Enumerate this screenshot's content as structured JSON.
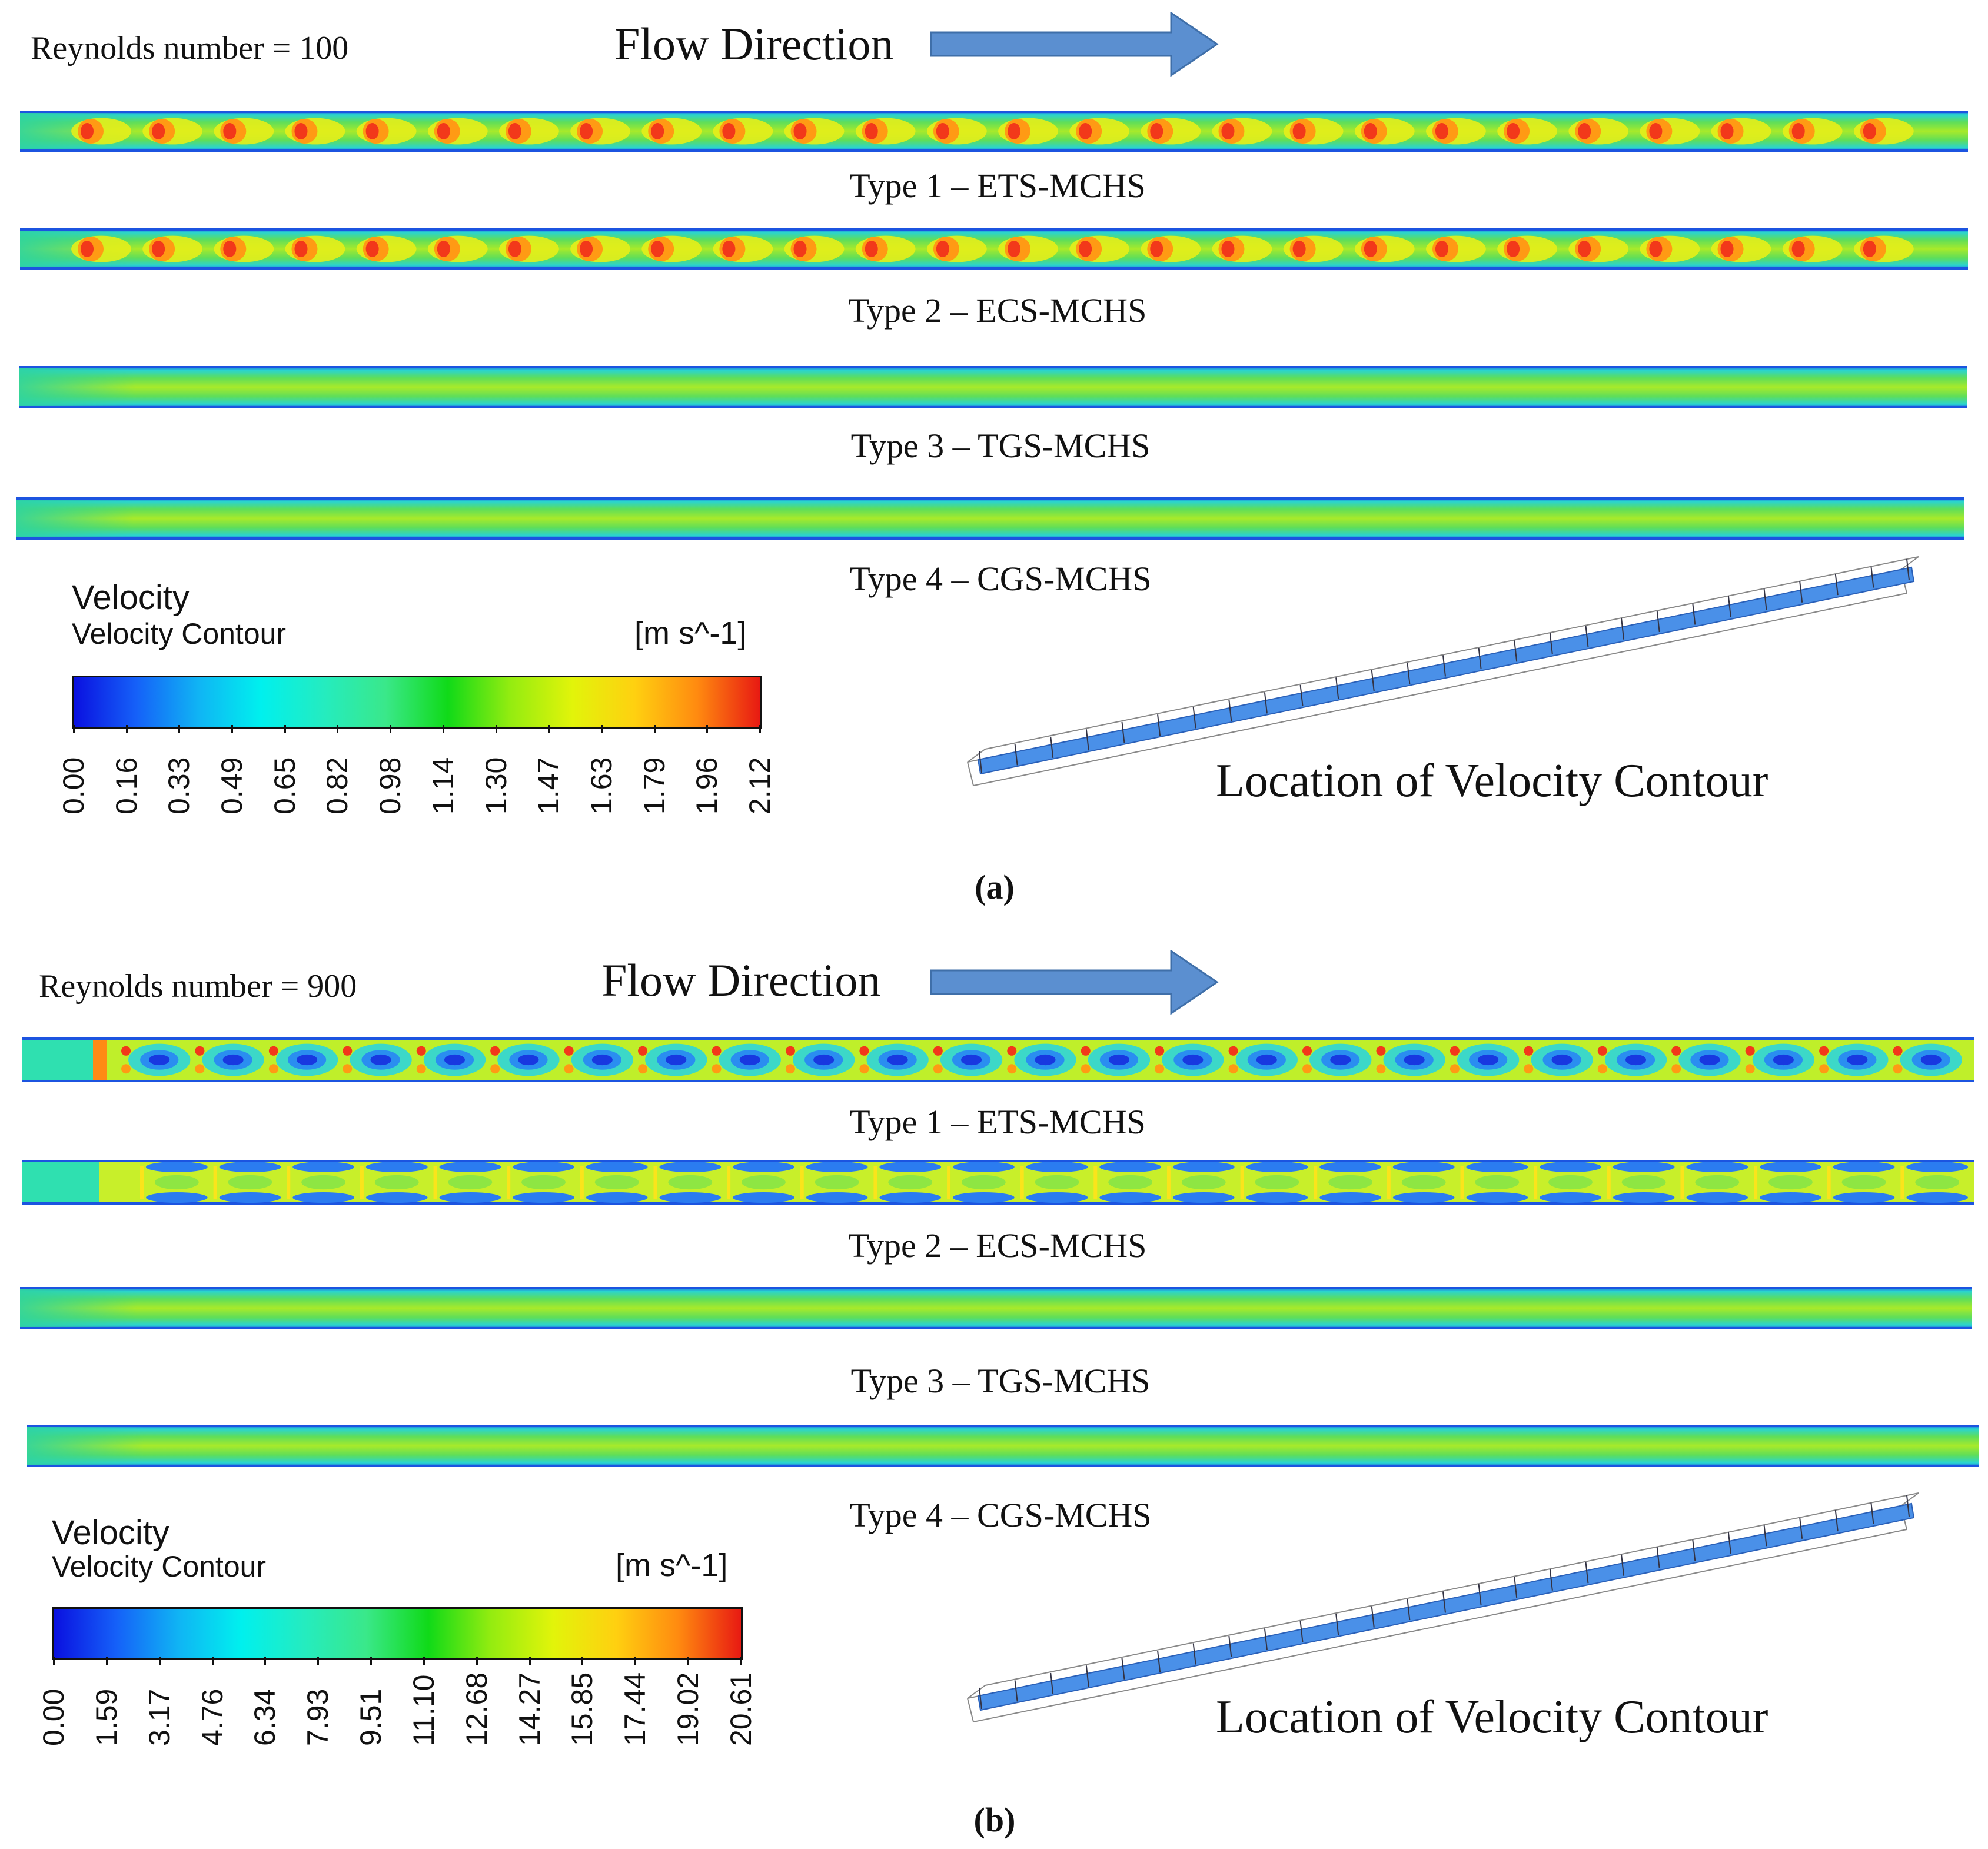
{
  "panels": [
    {
      "id": "a",
      "reynolds_label": "Reynolds number = 100",
      "flow_direction_label": "Flow Direction",
      "channels": [
        {
          "type_label": "Type 1 – ETS-MCHS",
          "pattern": "lobes",
          "lobe_count": 26
        },
        {
          "type_label": "Type 2 – ECS-MCHS",
          "pattern": "lobes",
          "lobe_count": 26
        },
        {
          "type_label": "Type 3 – TGS-MCHS",
          "pattern": "smooth"
        },
        {
          "type_label": "Type 4 – CGS-MCHS",
          "pattern": "smooth"
        }
      ],
      "legend": {
        "title": "Velocity",
        "subtitle": "Velocity Contour",
        "unit": "[m s^-1]",
        "ticks": [
          "0.00",
          "0.16",
          "0.33",
          "0.49",
          "0.65",
          "0.82",
          "0.98",
          "1.14",
          "1.30",
          "1.47",
          "1.63",
          "1.79",
          "1.96",
          "2.12"
        ],
        "colors": [
          "#0a10e0",
          "#1560f8",
          "#10b4f4",
          "#00f0ee",
          "#24ecc0",
          "#3ae88a",
          "#10da18",
          "#94ec10",
          "#e2f40a",
          "#ffd010",
          "#ff8a10",
          "#e81a12"
        ]
      },
      "location_label": "Location of Velocity Contour",
      "caption": "(a)"
    },
    {
      "id": "b",
      "reynolds_label": "Reynolds number = 900",
      "flow_direction_label": "Flow Direction",
      "channels": [
        {
          "type_label": "Type 1 – ETS-MCHS",
          "pattern": "vortex",
          "cell_count": 25
        },
        {
          "type_label": "Type 2 – ECS-MCHS",
          "pattern": "streaks",
          "cell_count": 25
        },
        {
          "type_label": "Type 3 – TGS-MCHS",
          "pattern": "smooth"
        },
        {
          "type_label": "Type 4 – CGS-MCHS",
          "pattern": "smooth"
        }
      ],
      "legend": {
        "title": "Velocity",
        "subtitle": "Velocity Contour",
        "unit": "[m s^-1]",
        "ticks": [
          "0.00",
          "1.59",
          "3.17",
          "4.76",
          "6.34",
          "7.93",
          "9.51",
          "11.10",
          "12.68",
          "14.27",
          "15.85",
          "17.44",
          "19.02",
          "20.61"
        ],
        "colors": [
          "#0a10e0",
          "#1560f8",
          "#10b4f4",
          "#00f0ee",
          "#24ecc0",
          "#3ae88a",
          "#10da18",
          "#94ec10",
          "#e2f40a",
          "#ffd010",
          "#ff8a10",
          "#e81a12"
        ]
      },
      "location_label": "Location of Velocity Contour",
      "caption": "(b)"
    }
  ],
  "colors": {
    "arrow": "#5b8fd0",
    "arrow_edge": "#3f6fa9",
    "wall_blue": "#1c54e0",
    "channel_fill": "#7fe24a",
    "core_green": "#b4ee26",
    "lobe_orange": "#ff7a18",
    "heatsink_blue": "#4a90e8"
  }
}
